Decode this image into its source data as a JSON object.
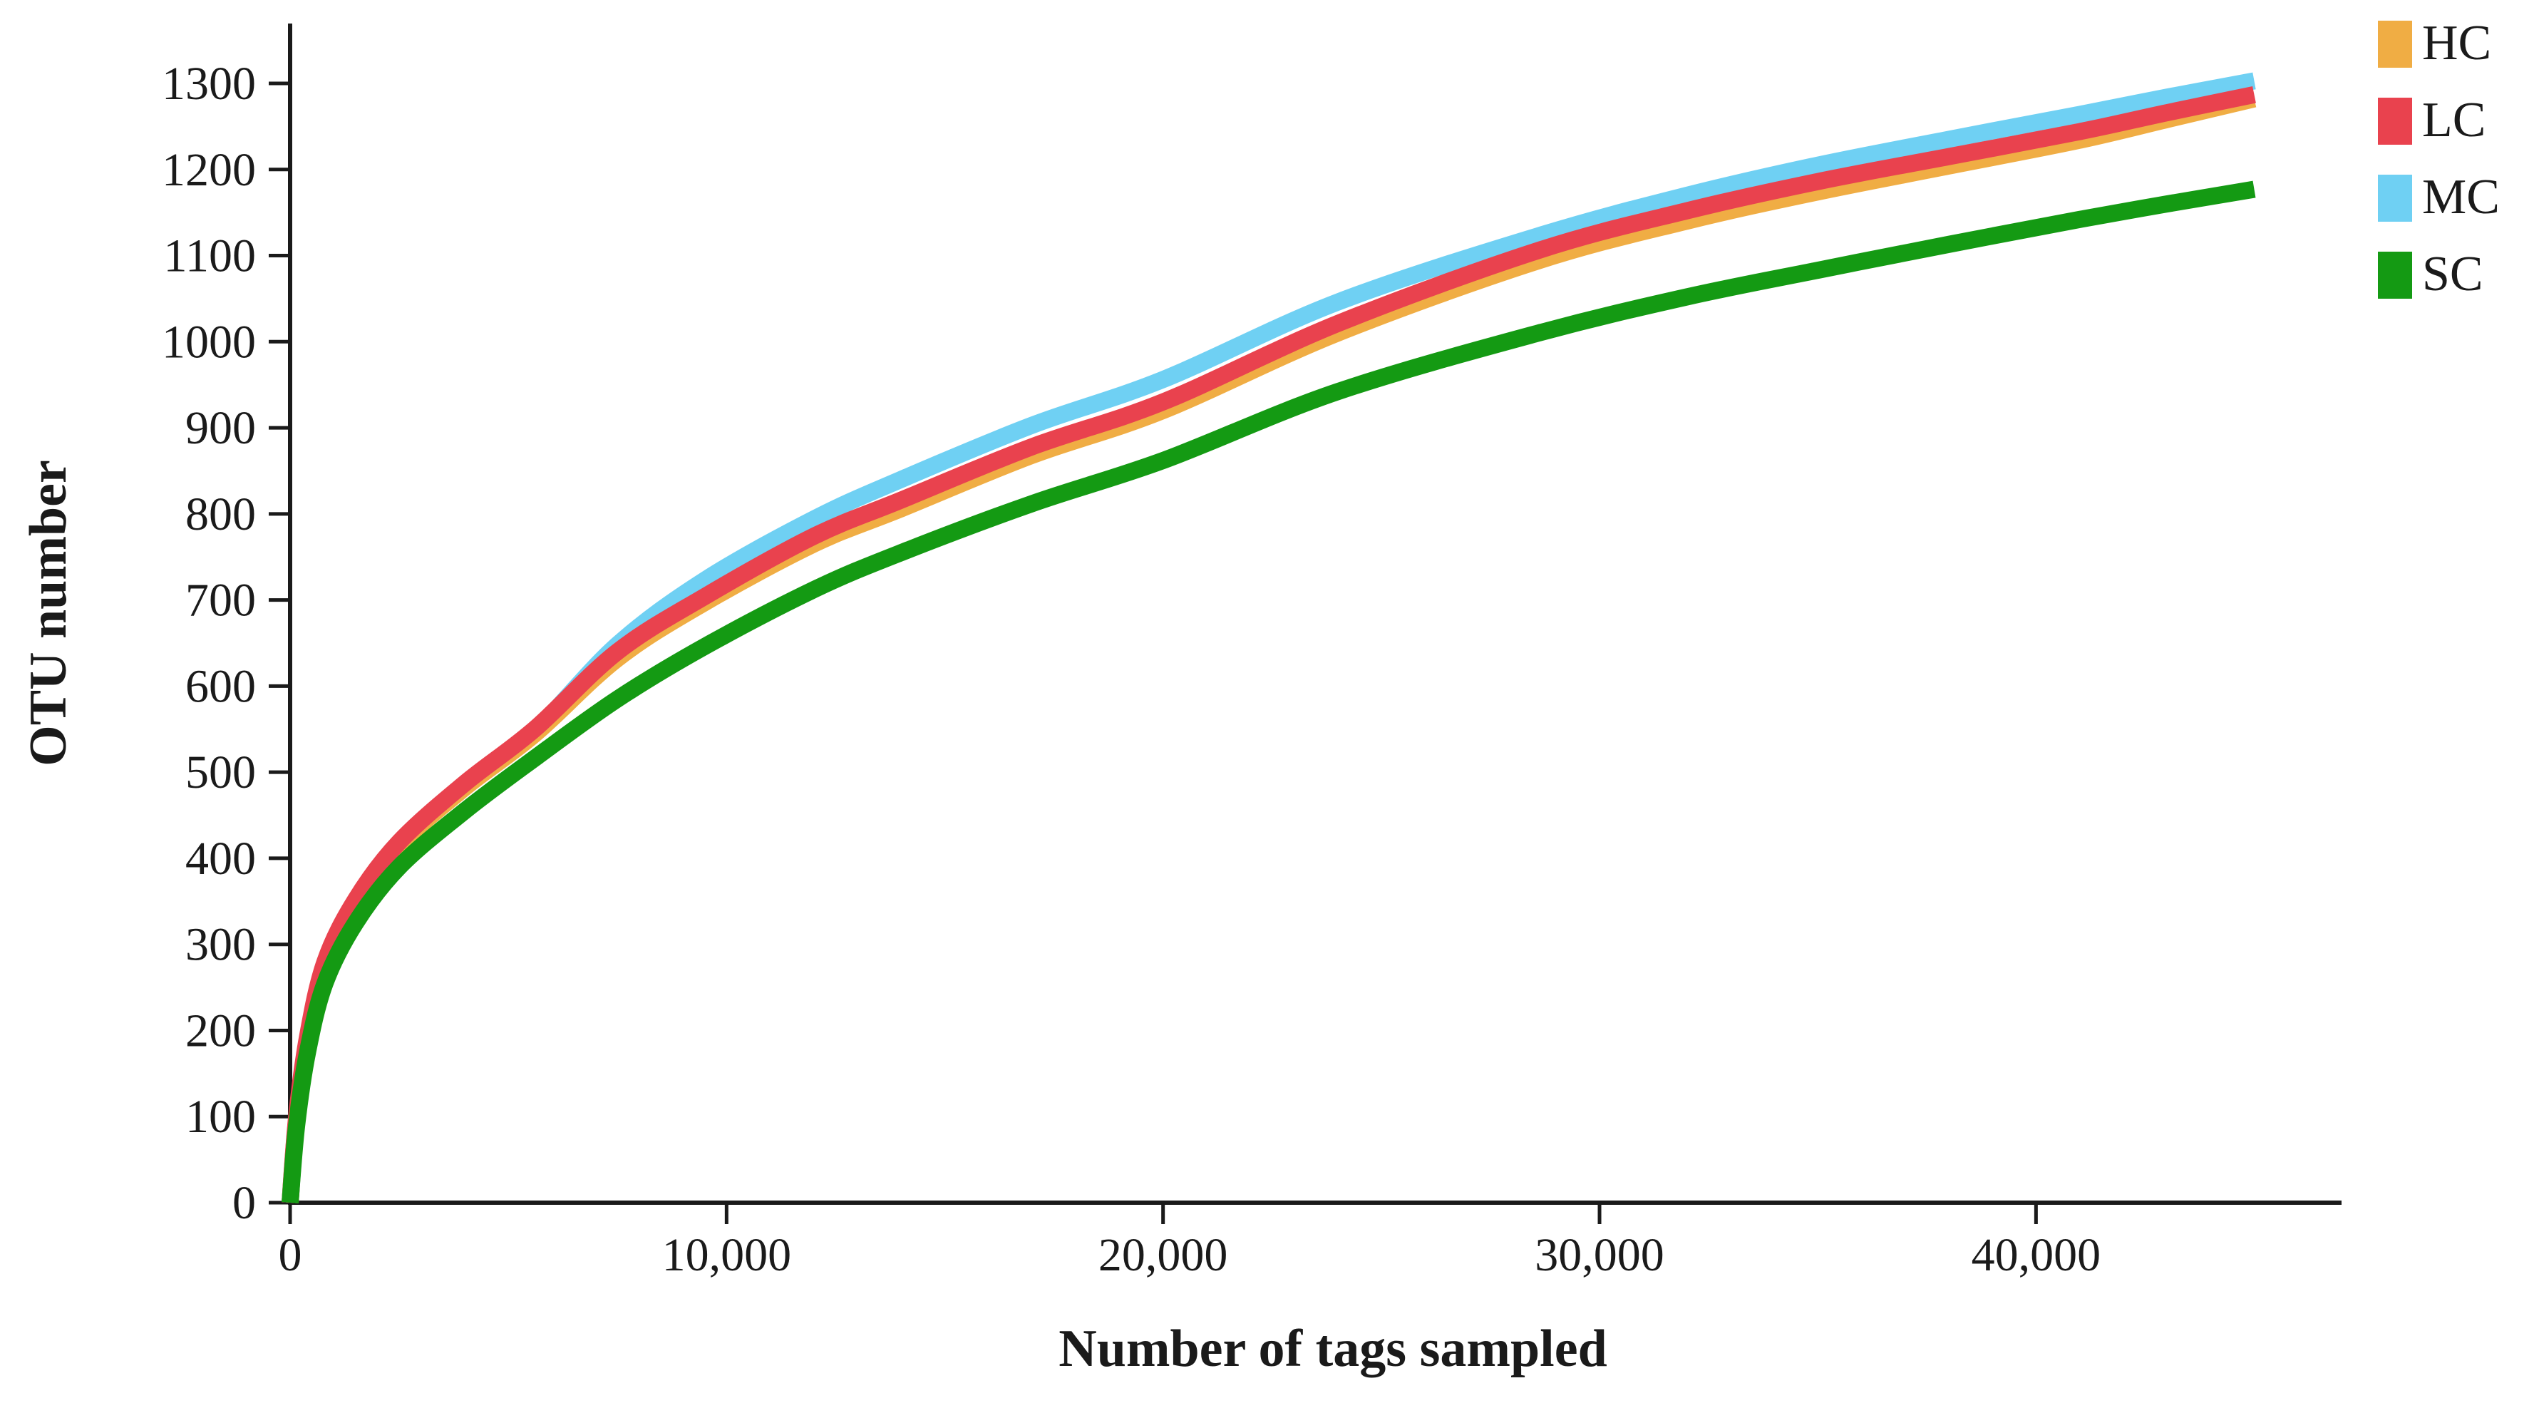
{
  "figure": {
    "background": "#ffffff"
  },
  "chart_data": {
    "type": "line",
    "title": "",
    "xlabel": "Number of tags sampled",
    "ylabel": "OTU number",
    "xlim": [
      0,
      47000
    ],
    "ylim": [
      0,
      1300
    ],
    "x_ticks": [
      0,
      10000,
      20000,
      30000,
      40000
    ],
    "x_tick_labels": [
      "0",
      "10,000",
      "20,000",
      "30,000",
      "40,000"
    ],
    "y_ticks": [
      0,
      100,
      200,
      300,
      400,
      500,
      600,
      700,
      800,
      900,
      1000,
      1100,
      1200,
      1300
    ],
    "y_tick_labels": [
      "0",
      "100",
      "200",
      "300",
      "400",
      "500",
      "600",
      "700",
      "800",
      "900",
      "1000",
      "1100",
      "1200",
      "1300"
    ],
    "grid": false,
    "legend_position": "outside-top-right",
    "axis_color": "#1a1a1a",
    "text_color": "#1a1a1a",
    "x": [
      0,
      150,
      400,
      800,
      1500,
      2500,
      4000,
      5600,
      7500,
      9500,
      12000,
      14000,
      17000,
      20000,
      24000,
      28600,
      32000,
      35000,
      38000,
      41000,
      43000,
      45000
    ],
    "series": [
      {
        "name": "HC",
        "color": "#F0AD44",
        "values": [
          0,
          98,
          190,
          276,
          348,
          415,
          482,
          544,
          632,
          697,
          765,
          806,
          868,
          920,
          1010,
          1094,
          1140,
          1174,
          1204,
          1234,
          1258,
          1282
        ]
      },
      {
        "name": "LC",
        "color": "#E9424E",
        "values": [
          0,
          100,
          193,
          280,
          352,
          419,
          487,
          550,
          640,
          704,
          774,
          816,
          878,
          930,
          1021,
          1106,
          1152,
          1186,
          1215,
          1244,
          1266,
          1287
        ]
      },
      {
        "name": "MC",
        "color": "#6FD0F3",
        "values": [
          0,
          96,
          188,
          272,
          345,
          414,
          486,
          548,
          648,
          723,
          794,
          840,
          903,
          956,
          1046,
          1123,
          1170,
          1205,
          1235,
          1264,
          1284,
          1303
        ]
      },
      {
        "name": "SC",
        "color": "#149A13",
        "values": [
          0,
          90,
          175,
          255,
          325,
          390,
          455,
          516,
          585,
          646,
          712,
          755,
          812,
          862,
          942,
          1010,
          1052,
          1083,
          1113,
          1142,
          1160,
          1177
        ]
      }
    ],
    "z_order": [
      "MC",
      "HC",
      "LC",
      "SC"
    ]
  }
}
